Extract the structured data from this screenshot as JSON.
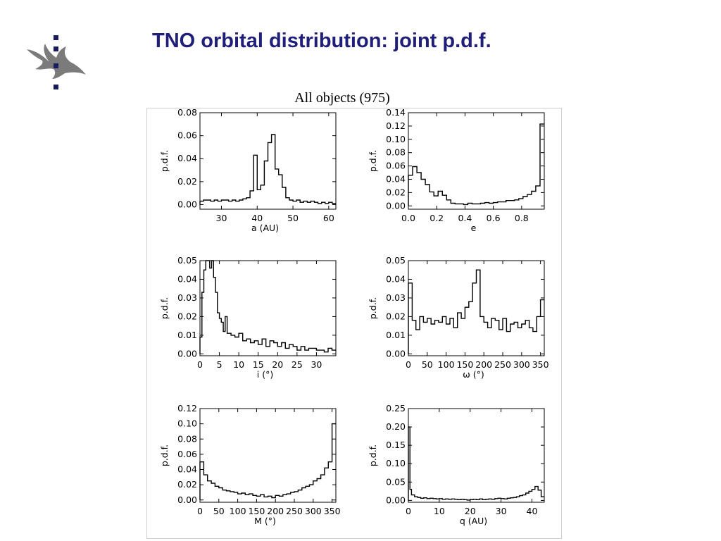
{
  "slide": {
    "title": "TNO orbital distribution: joint p.d.f.",
    "figure_caption": "All objects (975)"
  },
  "logo": {
    "icon": "university-flame-logo-icon",
    "colors": {
      "flame": "#7b7b7b",
      "dots": "#1a1a5e"
    }
  },
  "colors": {
    "title": "#1f1f7a",
    "line": "#000000",
    "frame": "#cfcfcf"
  },
  "chart_data": [
    {
      "type": "histogram-step",
      "xlabel": "a (AU)",
      "ylabel": "p.d.f.",
      "xlim": [
        24,
        62
      ],
      "ylim": [
        -0.004,
        0.08
      ],
      "xticks": [
        30,
        40,
        50,
        60
      ],
      "xticklabels": [
        "30",
        "40",
        "50",
        "60"
      ],
      "yticks": [
        0,
        0.02,
        0.04,
        0.06,
        0.08
      ],
      "yticklabels": [
        "0.00",
        "0.02",
        "0.04",
        "0.06",
        "0.08"
      ],
      "x": [
        24,
        25,
        26,
        27,
        28,
        29,
        30,
        31,
        32,
        33,
        34,
        35,
        36,
        37,
        38,
        39,
        40,
        41,
        42,
        43,
        44,
        45,
        46,
        47,
        48,
        49,
        50,
        51,
        52,
        53,
        54,
        55,
        56,
        57,
        58,
        59,
        60,
        61
      ],
      "y": [
        0.003,
        0.004,
        0.004,
        0.003,
        0.004,
        0.003,
        0.004,
        0.004,
        0.003,
        0.004,
        0.003,
        0.004,
        0.005,
        0.006,
        0.012,
        0.043,
        0.013,
        0.017,
        0.038,
        0.054,
        0.061,
        0.031,
        0.026,
        0.015,
        0.006,
        0.004,
        0.003,
        0.004,
        0.002,
        0.003,
        0.002,
        0.003,
        0.002,
        0.001,
        0.002,
        0.001,
        0.002,
        0.001
      ]
    },
    {
      "type": "histogram-step",
      "xlabel": "e",
      "ylabel": "p.d.f.",
      "xlim": [
        0,
        0.96
      ],
      "ylim": [
        -0.005,
        0.14
      ],
      "xticks": [
        0,
        0.2,
        0.4,
        0.6,
        0.8
      ],
      "xticklabels": [
        "0.0",
        "0.2",
        "0.4",
        "0.6",
        "0.8"
      ],
      "yticks": [
        0,
        0.02,
        0.04,
        0.06,
        0.08,
        0.1,
        0.12,
        0.14
      ],
      "yticklabels": [
        "0.00",
        "0.02",
        "0.04",
        "0.06",
        "0.08",
        "0.10",
        "0.12",
        "0.14"
      ],
      "x": [
        0,
        0.03,
        0.06,
        0.09,
        0.12,
        0.15,
        0.18,
        0.21,
        0.24,
        0.27,
        0.3,
        0.33,
        0.36,
        0.39,
        0.42,
        0.45,
        0.48,
        0.51,
        0.54,
        0.57,
        0.6,
        0.63,
        0.66,
        0.69,
        0.72,
        0.75,
        0.78,
        0.81,
        0.84,
        0.87,
        0.9,
        0.93
      ],
      "y": [
        0.046,
        0.059,
        0.05,
        0.04,
        0.032,
        0.021,
        0.015,
        0.022,
        0.016,
        0.009,
        0.004,
        0.003,
        0.003,
        0.002,
        0.004,
        0.003,
        0.003,
        0.004,
        0.005,
        0.004,
        0.005,
        0.006,
        0.006,
        0.008,
        0.008,
        0.009,
        0.011,
        0.014,
        0.017,
        0.022,
        0.03,
        0.123
      ]
    },
    {
      "type": "histogram-step",
      "xlabel": "i (°)",
      "ylabel": "p.d.f.",
      "xlim": [
        0,
        35
      ],
      "ylim": [
        -0.001,
        0.05
      ],
      "xticks": [
        0,
        5,
        10,
        15,
        20,
        25,
        30
      ],
      "xticklabels": [
        "0",
        "5",
        "10",
        "15",
        "20",
        "25",
        "30"
      ],
      "yticks": [
        0,
        0.01,
        0.02,
        0.03,
        0.04,
        0.05
      ],
      "yticklabels": [
        "0.00",
        "0.01",
        "0.02",
        "0.03",
        "0.04",
        "0.05"
      ],
      "x": [
        0,
        0.5,
        1,
        1.5,
        2,
        2.5,
        3,
        3.5,
        4,
        4.5,
        5,
        5.5,
        6,
        6.5,
        7,
        8,
        9,
        10,
        11,
        12,
        13,
        14,
        15,
        16,
        17,
        18,
        19,
        20,
        21,
        22,
        23,
        24,
        25,
        26,
        27,
        28,
        29,
        30,
        31,
        32,
        33,
        34
      ],
      "y": [
        0.009,
        0.033,
        0.045,
        0.05,
        0.05,
        0.046,
        0.05,
        0.041,
        0.033,
        0.022,
        0.019,
        0.017,
        0.012,
        0.02,
        0.011,
        0.01,
        0.009,
        0.011,
        0.007,
        0.008,
        0.006,
        0.007,
        0.005,
        0.008,
        0.004,
        0.007,
        0.006,
        0.004,
        0.006,
        0.003,
        0.005,
        0.004,
        0.002,
        0.004,
        0.002,
        0.003,
        0.003,
        0.002,
        0.002,
        0.001,
        0.003,
        0.002
      ]
    },
    {
      "type": "histogram-step",
      "xlabel": "ω (°)",
      "ylabel": "p.d.f.",
      "xlim": [
        0,
        360
      ],
      "ylim": [
        -0.001,
        0.05
      ],
      "xticks": [
        0,
        50,
        100,
        150,
        200,
        250,
        300,
        350
      ],
      "xticklabels": [
        "0",
        "50",
        "100",
        "150",
        "200",
        "250",
        "300",
        "350"
      ],
      "yticks": [
        0,
        0.01,
        0.02,
        0.03,
        0.04,
        0.05
      ],
      "yticklabels": [
        "0.00",
        "0.01",
        "0.02",
        "0.03",
        "0.04",
        "0.05"
      ],
      "x": [
        0,
        10,
        20,
        30,
        40,
        50,
        60,
        70,
        80,
        90,
        100,
        110,
        120,
        130,
        140,
        150,
        160,
        170,
        180,
        190,
        200,
        210,
        220,
        230,
        240,
        250,
        260,
        270,
        280,
        290,
        300,
        310,
        320,
        330,
        340,
        350
      ],
      "y": [
        0.038,
        0.018,
        0.013,
        0.02,
        0.017,
        0.019,
        0.016,
        0.018,
        0.017,
        0.02,
        0.016,
        0.019,
        0.014,
        0.022,
        0.019,
        0.025,
        0.028,
        0.038,
        0.045,
        0.02,
        0.017,
        0.014,
        0.019,
        0.018,
        0.013,
        0.019,
        0.012,
        0.016,
        0.017,
        0.014,
        0.016,
        0.018,
        0.014,
        0.012,
        0.02,
        0.029
      ]
    },
    {
      "type": "histogram-step",
      "xlabel": "M (°)",
      "ylabel": "p.d.f.",
      "xlim": [
        0,
        360
      ],
      "ylim": [
        -0.003,
        0.12
      ],
      "xticks": [
        0,
        50,
        100,
        150,
        200,
        250,
        300,
        350
      ],
      "xticklabels": [
        "0",
        "50",
        "100",
        "150",
        "200",
        "250",
        "300",
        "350"
      ],
      "yticks": [
        0,
        0.02,
        0.04,
        0.06,
        0.08,
        0.1,
        0.12
      ],
      "yticklabels": [
        "0.00",
        "0.02",
        "0.04",
        "0.06",
        "0.08",
        "0.10",
        "0.12"
      ],
      "x": [
        0,
        10,
        20,
        30,
        40,
        50,
        60,
        70,
        80,
        90,
        100,
        110,
        120,
        130,
        140,
        150,
        160,
        170,
        180,
        190,
        200,
        210,
        220,
        230,
        240,
        250,
        260,
        270,
        280,
        290,
        300,
        310,
        320,
        330,
        340,
        350
      ],
      "y": [
        0.05,
        0.033,
        0.025,
        0.022,
        0.018,
        0.016,
        0.013,
        0.012,
        0.011,
        0.01,
        0.008,
        0.009,
        0.007,
        0.008,
        0.006,
        0.005,
        0.007,
        0.004,
        0.005,
        0.003,
        0.006,
        0.005,
        0.007,
        0.008,
        0.01,
        0.011,
        0.013,
        0.016,
        0.018,
        0.02,
        0.025,
        0.028,
        0.033,
        0.042,
        0.05,
        0.1
      ]
    },
    {
      "type": "histogram-step",
      "xlabel": "q (AU)",
      "ylabel": "p.d.f.",
      "xlim": [
        0,
        44
      ],
      "ylim": [
        -0.005,
        0.25
      ],
      "xticks": [
        0,
        10,
        20,
        30,
        40
      ],
      "xticklabels": [
        "0",
        "10",
        "20",
        "30",
        "40"
      ],
      "yticks": [
        0,
        0.05,
        0.1,
        0.15,
        0.2,
        0.25
      ],
      "yticklabels": [
        "0.00",
        "0.05",
        "0.10",
        "0.15",
        "0.20",
        "0.25"
      ],
      "x": [
        0,
        0.5,
        1,
        2,
        3,
        4,
        5,
        6,
        7,
        8,
        9,
        10,
        11,
        12,
        13,
        14,
        15,
        16,
        17,
        18,
        19,
        20,
        21,
        22,
        23,
        24,
        25,
        26,
        27,
        28,
        29,
        30,
        31,
        32,
        33,
        34,
        35,
        36,
        37,
        38,
        39,
        40,
        41,
        42,
        43
      ],
      "y": [
        0.2,
        0.03,
        0.015,
        0.01,
        0.008,
        0.006,
        0.007,
        0.005,
        0.006,
        0.005,
        0.004,
        0.005,
        0.003,
        0.004,
        0.003,
        0.004,
        0.003,
        0.002,
        0.003,
        0.002,
        0.001,
        0.002,
        0.003,
        0.002,
        0.004,
        0.002,
        0.003,
        0.004,
        0.003,
        0.005,
        0.006,
        0.005,
        0.004,
        0.006,
        0.007,
        0.008,
        0.01,
        0.013,
        0.015,
        0.02,
        0.025,
        0.03,
        0.038,
        0.028,
        0.01
      ]
    }
  ]
}
